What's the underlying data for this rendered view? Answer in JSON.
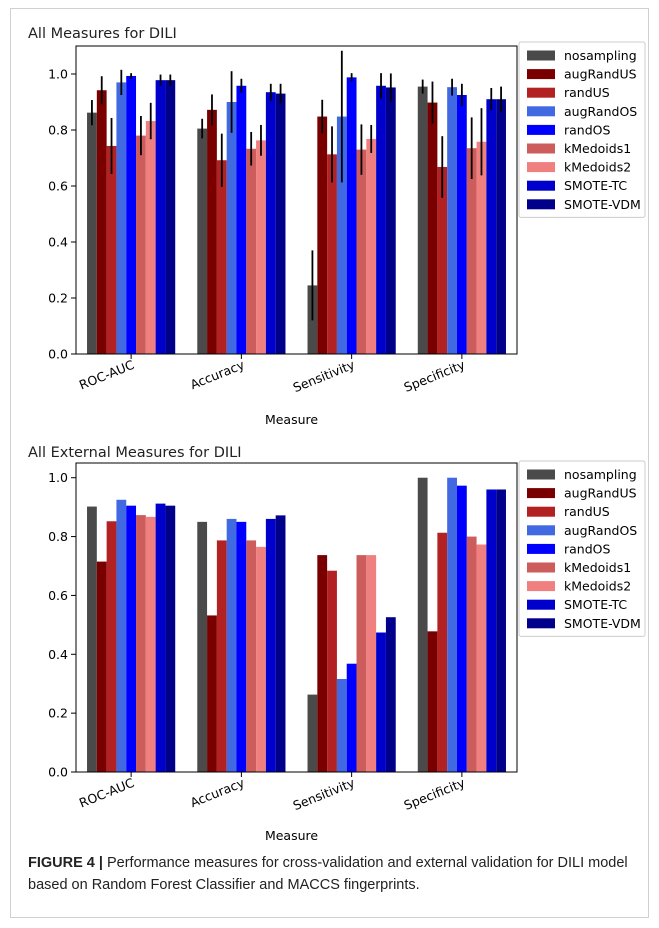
{
  "figure": {
    "caption_label": "FIGURE 4 |",
    "caption_text": " Performance measures for cross-validation and external validation for DILI model based on Random Forest Classifier and MACCS fingerprints."
  },
  "chart_data": [
    {
      "type": "bar",
      "title": "All Measures for DILI",
      "xlabel": "Measure",
      "ylabel": "",
      "ylim": [
        0,
        1.1
      ],
      "yticks": [
        "0.0",
        "0.2",
        "0.4",
        "0.6",
        "0.8",
        "1.0"
      ],
      "ytick_values": [
        0,
        0.2,
        0.4,
        0.6,
        0.8,
        1.0
      ],
      "legend_position": "right-outside",
      "error_bars": true,
      "categories": [
        "ROC-AUC",
        "Accuracy",
        "Sensitivity",
        "Specificity"
      ],
      "series": [
        {
          "name": "nosampling",
          "color": "#4a4a4a",
          "values": [
            0.862,
            0.805,
            0.245,
            0.955
          ],
          "errors": [
            0.045,
            0.035,
            0.125,
            0.025
          ]
        },
        {
          "name": "augRandUS",
          "color": "#7a0000",
          "values": [
            0.942,
            0.872,
            0.848,
            0.898
          ],
          "errors": [
            0.05,
            0.055,
            0.06,
            0.075
          ]
        },
        {
          "name": "randUS",
          "color": "#b22222",
          "values": [
            0.743,
            0.692,
            0.713,
            0.668
          ],
          "errors": [
            0.1,
            0.095,
            0.1,
            0.11
          ]
        },
        {
          "name": "augRandOS",
          "color": "#4169e1",
          "values": [
            0.97,
            0.9,
            0.848,
            0.953
          ],
          "errors": [
            0.045,
            0.11,
            0.235,
            0.03
          ]
        },
        {
          "name": "randOS",
          "color": "#0000ff",
          "values": [
            0.993,
            0.958,
            0.988,
            0.925
          ],
          "errors": [
            0.01,
            0.025,
            0.015,
            0.04
          ]
        },
        {
          "name": "kMedoids1",
          "color": "#cd5c5c",
          "values": [
            0.78,
            0.733,
            0.73,
            0.735
          ],
          "errors": [
            0.07,
            0.06,
            0.09,
            0.11
          ]
        },
        {
          "name": "kMedoids2",
          "color": "#f08080",
          "values": [
            0.832,
            0.763,
            0.768,
            0.758
          ],
          "errors": [
            0.065,
            0.055,
            0.05,
            0.12
          ]
        },
        {
          "name": "SMOTE-TC",
          "color": "#0000cd",
          "values": [
            0.978,
            0.935,
            0.958,
            0.91
          ],
          "errors": [
            0.02,
            0.03,
            0.045,
            0.04
          ]
        },
        {
          "name": "SMOTE-VDM",
          "color": "#00008b",
          "values": [
            0.978,
            0.93,
            0.952,
            0.91
          ],
          "errors": [
            0.02,
            0.035,
            0.05,
            0.045
          ]
        }
      ]
    },
    {
      "type": "bar",
      "title": "All External Measures for DILI",
      "xlabel": "Measure",
      "ylabel": "",
      "ylim": [
        0,
        1.05
      ],
      "yticks": [
        "0.0",
        "0.2",
        "0.4",
        "0.6",
        "0.8",
        "1.0"
      ],
      "ytick_values": [
        0,
        0.2,
        0.4,
        0.6,
        0.8,
        1.0
      ],
      "legend_position": "right-outside",
      "error_bars": false,
      "categories": [
        "ROC-AUC",
        "Accuracy",
        "Sensitivity",
        "Specificity"
      ],
      "series": [
        {
          "name": "nosampling",
          "color": "#4a4a4a",
          "values": [
            0.902,
            0.85,
            0.263,
            1.0
          ]
        },
        {
          "name": "augRandUS",
          "color": "#7a0000",
          "values": [
            0.715,
            0.532,
            0.737,
            0.478
          ]
        },
        {
          "name": "randUS",
          "color": "#b22222",
          "values": [
            0.852,
            0.787,
            0.684,
            0.813
          ]
        },
        {
          "name": "augRandOS",
          "color": "#4169e1",
          "values": [
            0.925,
            0.86,
            0.316,
            1.0
          ]
        },
        {
          "name": "randOS",
          "color": "#0000ff",
          "values": [
            0.905,
            0.85,
            0.368,
            0.973
          ]
        },
        {
          "name": "kMedoids1",
          "color": "#cd5c5c",
          "values": [
            0.873,
            0.787,
            0.737,
            0.8
          ]
        },
        {
          "name": "kMedoids2",
          "color": "#f08080",
          "values": [
            0.867,
            0.765,
            0.737,
            0.773
          ]
        },
        {
          "name": "SMOTE-TC",
          "color": "#0000cd",
          "values": [
            0.912,
            0.86,
            0.474,
            0.96
          ]
        },
        {
          "name": "SMOTE-VDM",
          "color": "#00008b",
          "values": [
            0.905,
            0.872,
            0.526,
            0.96
          ]
        }
      ]
    }
  ]
}
